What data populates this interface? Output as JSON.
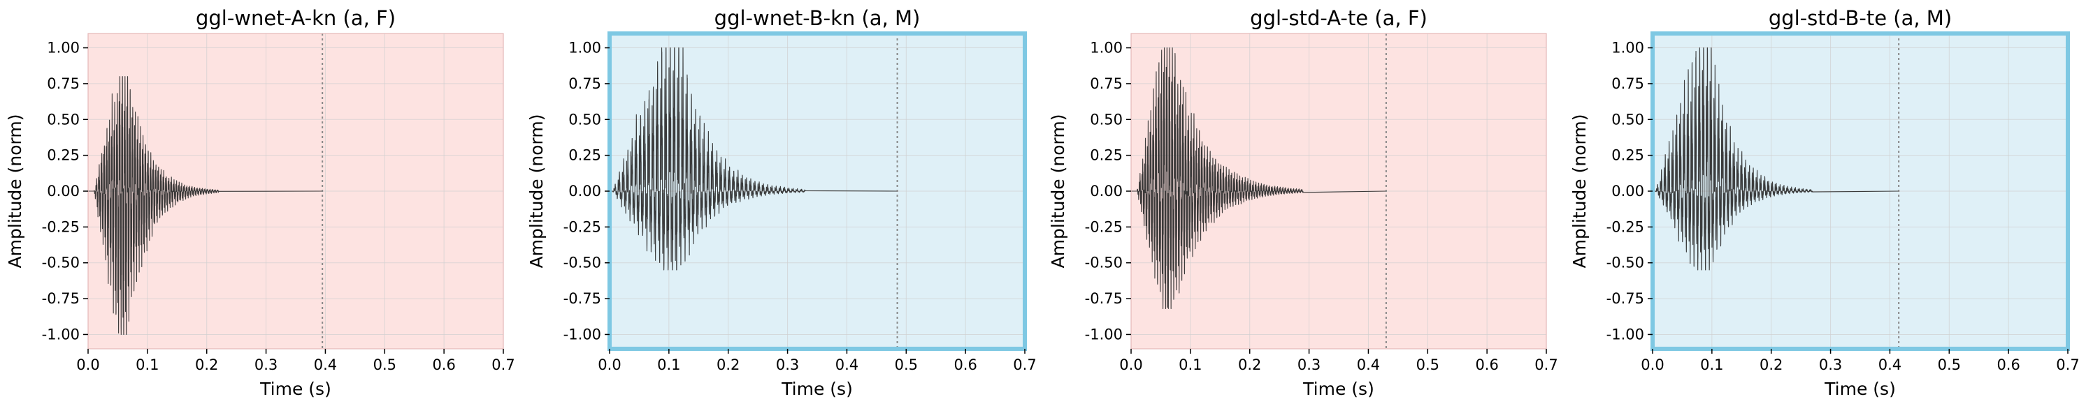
{
  "figure": {
    "background": "#ffffff"
  },
  "style": {
    "waveform_color": "#2b2b2b",
    "female_bg": "#fde3e1",
    "male_bg": "#dff0f7",
    "highlight_border": "#7ec8e3",
    "grid_color": "#d0d0d0",
    "end_marker_color": "#888888"
  },
  "chart_data": [
    {
      "type": "line",
      "title": "ggl-wnet-A-kn (a, F)",
      "xlabel": "Time (s)",
      "ylabel": "Amplitude (norm)",
      "xlim": [
        0,
        0.7
      ],
      "ylim": [
        -1.1,
        1.1
      ],
      "xticks": [
        "0.0",
        "0.1",
        "0.2",
        "0.3",
        "0.4",
        "0.5",
        "0.6",
        "0.7"
      ],
      "yticks": [
        "1.00",
        "0.75",
        "0.50",
        "0.25",
        "0.00",
        "-0.25",
        "-0.50",
        "-0.75",
        "-1.00"
      ],
      "grid": true,
      "background": "female",
      "highlighted": false,
      "end_time": 0.395,
      "waveform": {
        "onset": 0.01,
        "peak_time": 0.06,
        "pos_peak": 0.8,
        "neg_peak": -1.0,
        "decay_end": 0.2,
        "pitch_hz": 230
      }
    },
    {
      "type": "line",
      "title": "ggl-wnet-B-kn (a, M)",
      "xlabel": "Time (s)",
      "ylabel": "Amplitude (norm)",
      "xlim": [
        0,
        0.7
      ],
      "ylim": [
        -1.1,
        1.1
      ],
      "xticks": [
        "0.0",
        "0.1",
        "0.2",
        "0.3",
        "0.4",
        "0.5",
        "0.6",
        "0.7"
      ],
      "yticks": [
        "1.00",
        "0.75",
        "0.50",
        "0.25",
        "0.00",
        "-0.25",
        "-0.50",
        "-0.75",
        "-1.00"
      ],
      "grid": true,
      "background": "male",
      "highlighted": true,
      "end_time": 0.485,
      "waveform": {
        "onset": 0.005,
        "peak_time": 0.11,
        "pos_peak": 1.0,
        "neg_peak": -0.55,
        "decay_end": 0.31,
        "pitch_hz": 140
      }
    },
    {
      "type": "line",
      "title": "ggl-std-A-te (a, F)",
      "xlabel": "Time (s)",
      "ylabel": "Amplitude (norm)",
      "xlim": [
        0,
        0.7
      ],
      "ylim": [
        -1.1,
        1.1
      ],
      "xticks": [
        "0.0",
        "0.1",
        "0.2",
        "0.3",
        "0.4",
        "0.5",
        "0.6",
        "0.7"
      ],
      "yticks": [
        "1.00",
        "0.75",
        "0.50",
        "0.25",
        "0.00",
        "-0.25",
        "-0.50",
        "-0.75",
        "-1.00"
      ],
      "grid": true,
      "background": "female",
      "highlighted": false,
      "end_time": 0.43,
      "waveform": {
        "onset": 0.01,
        "peak_time": 0.06,
        "pos_peak": 1.0,
        "neg_peak": -0.82,
        "decay_end": 0.27,
        "pitch_hz": 220
      }
    },
    {
      "type": "line",
      "title": "ggl-std-B-te (a, M)",
      "xlabel": "Time (s)",
      "ylabel": "Amplitude (norm)",
      "xlim": [
        0,
        0.7
      ],
      "ylim": [
        -1.1,
        1.1
      ],
      "xticks": [
        "0.0",
        "0.1",
        "0.2",
        "0.3",
        "0.4",
        "0.5",
        "0.6",
        "0.7"
      ],
      "yticks": [
        "1.00",
        "0.75",
        "0.50",
        "0.25",
        "0.00",
        "-0.25",
        "-0.50",
        "-0.75",
        "-1.00"
      ],
      "grid": true,
      "background": "male",
      "highlighted": true,
      "end_time": 0.415,
      "waveform": {
        "onset": 0.005,
        "peak_time": 0.09,
        "pos_peak": 1.0,
        "neg_peak": -0.55,
        "decay_end": 0.25,
        "pitch_hz": 155
      }
    }
  ]
}
